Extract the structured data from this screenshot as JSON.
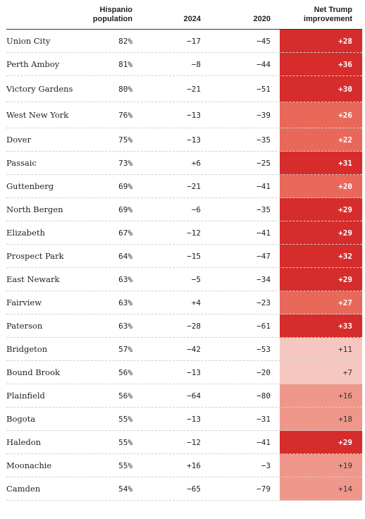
{
  "colors": {
    "strong": "#d62c2c",
    "mid": "#e8695a",
    "light": "#f0978b",
    "pale": "#f6c7c0"
  },
  "headers": {
    "population": "Hispanio\npopulation",
    "y2024": "2024",
    "y2020": "2020",
    "net": "Net Trump\nimprovement"
  },
  "chart_data": {
    "type": "table",
    "columns": [
      "",
      "Hispanio population",
      "2024",
      "2020",
      "Net Trump improvement"
    ],
    "rows": [
      {
        "place": "Union City",
        "population": "82%",
        "y2024": "−17",
        "y2020": "−45",
        "net": "+28",
        "shade": "strong"
      },
      {
        "place": "Perth Amboy",
        "population": "81%",
        "y2024": "−8",
        "y2020": "−44",
        "net": "+36",
        "shade": "strong"
      },
      {
        "place": "Victory Gardens",
        "population": "80%",
        "y2024": "−21",
        "y2020": "−51",
        "net": "+30",
        "shade": "strong"
      },
      {
        "place": "West New York",
        "population": "76%",
        "y2024": "−13",
        "y2020": "−39",
        "net": "+26",
        "shade": "mid"
      },
      {
        "place": "Dover",
        "population": "75%",
        "y2024": "−13",
        "y2020": "−35",
        "net": "+22",
        "shade": "mid"
      },
      {
        "place": "Passaic",
        "population": "73%",
        "y2024": "+6",
        "y2020": "−25",
        "net": "+31",
        "shade": "strong"
      },
      {
        "place": "Guttenberg",
        "population": "69%",
        "y2024": "−21",
        "y2020": "−41",
        "net": "+20",
        "shade": "mid"
      },
      {
        "place": "North Bergen",
        "population": "69%",
        "y2024": "−6",
        "y2020": "−35",
        "net": "+29",
        "shade": "strong"
      },
      {
        "place": "Elizabeth",
        "population": "67%",
        "y2024": "−12",
        "y2020": "−41",
        "net": "+29",
        "shade": "strong"
      },
      {
        "place": "Prospect Park",
        "population": "64%",
        "y2024": "−15",
        "y2020": "−47",
        "net": "+32",
        "shade": "strong"
      },
      {
        "place": "East Newark",
        "population": "63%",
        "y2024": "−5",
        "y2020": "−34",
        "net": "+29",
        "shade": "strong"
      },
      {
        "place": "Fairview",
        "population": "63%",
        "y2024": "+4",
        "y2020": "−23",
        "net": "+27",
        "shade": "mid"
      },
      {
        "place": "Paterson",
        "population": "63%",
        "y2024": "−28",
        "y2020": "−61",
        "net": "+33",
        "shade": "strong"
      },
      {
        "place": "Bridgeton",
        "population": "57%",
        "y2024": "−42",
        "y2020": "−53",
        "net": "+11",
        "shade": "pale"
      },
      {
        "place": "Bound Brook",
        "population": "56%",
        "y2024": "−13",
        "y2020": "−20",
        "net": "+7",
        "shade": "pale"
      },
      {
        "place": "Plainfield",
        "population": "56%",
        "y2024": "−64",
        "y2020": "−80",
        "net": "+16",
        "shade": "light"
      },
      {
        "place": "Bogota",
        "population": "55%",
        "y2024": "−13",
        "y2020": "−31",
        "net": "+18",
        "shade": "light"
      },
      {
        "place": "Haledon",
        "population": "55%",
        "y2024": "−12",
        "y2020": "−41",
        "net": "+29",
        "shade": "strong"
      },
      {
        "place": "Moonachie",
        "population": "55%",
        "y2024": "+16",
        "y2020": "−3",
        "net": "+19",
        "shade": "light"
      },
      {
        "place": "Camden",
        "population": "54%",
        "y2024": "−65",
        "y2020": "−79",
        "net": "+14",
        "shade": "light"
      }
    ]
  }
}
